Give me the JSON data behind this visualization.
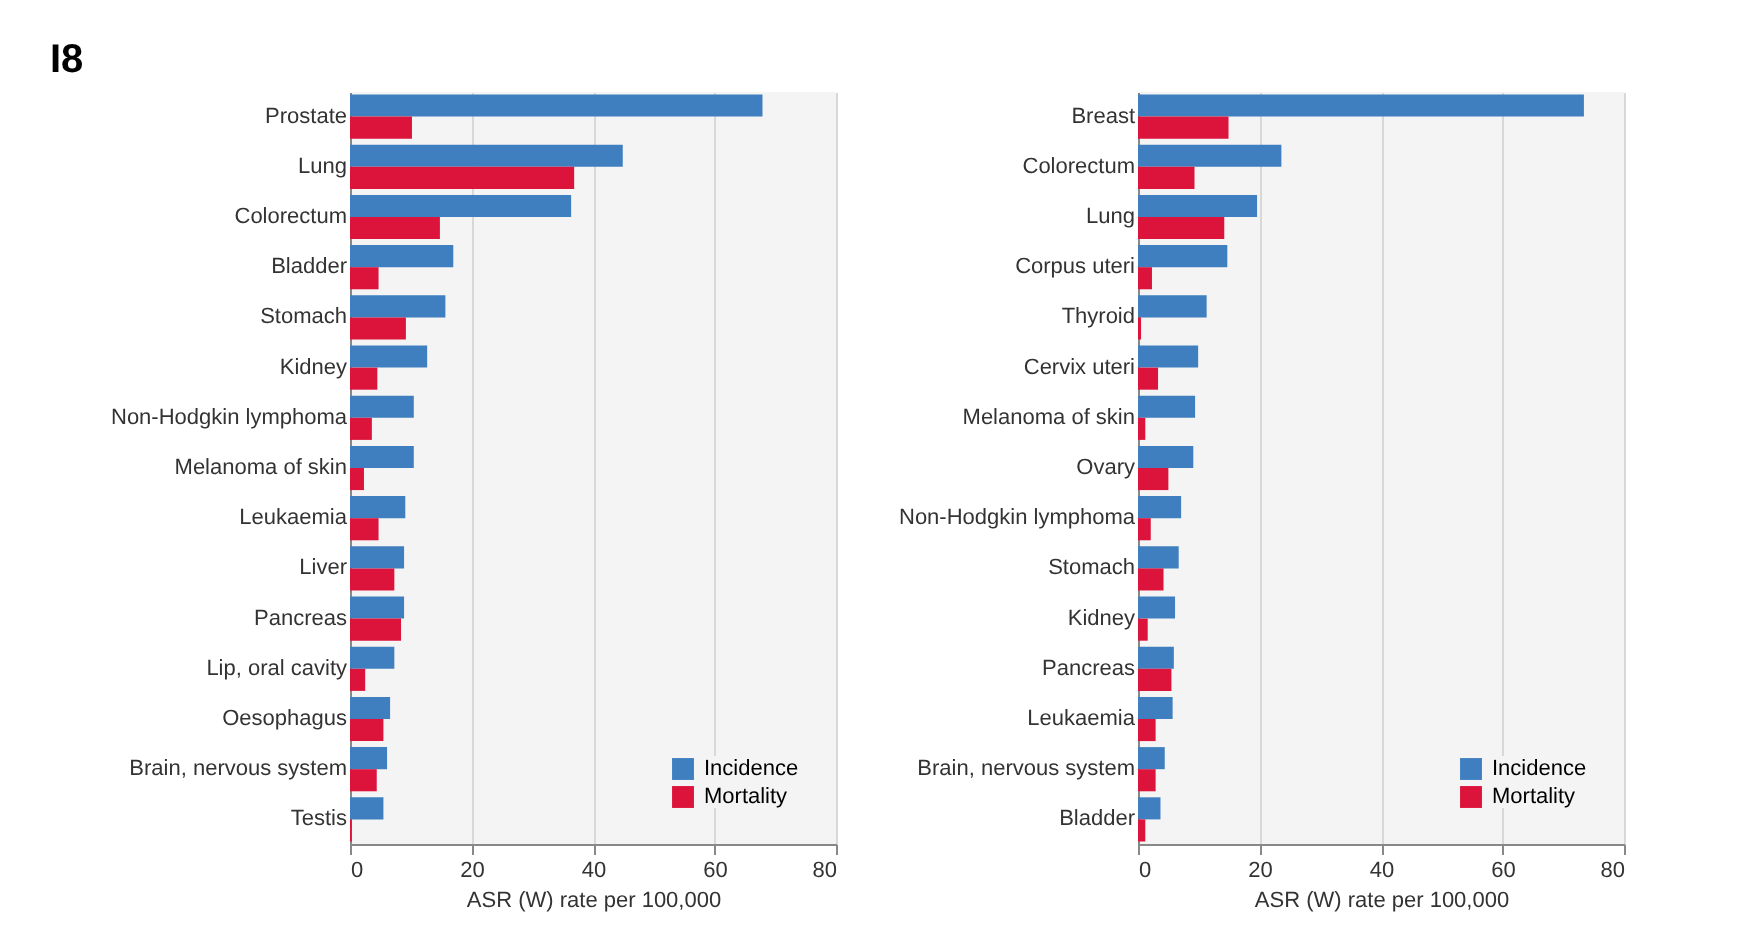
{
  "chart_data": [
    {
      "type": "bar",
      "title": "I8",
      "orientation": "horizontal",
      "xlabel": "ASR (W) rate per 100,000",
      "categories": [
        "Prostate",
        "Lung",
        "Colorectum",
        "Bladder",
        "Stomach",
        "Kidney",
        "Non-Hodgkin lymphoma",
        "Melanoma of skin",
        "Leukaemia",
        "Liver",
        "Pancreas",
        "Lip, oral cavity",
        "Oesophagus",
        "Brain, nervous system",
        "Testis"
      ],
      "series": [
        {
          "name": "Incidence",
          "color": "#3f7fbf",
          "values": [
            67.9,
            44.9,
            36.4,
            17.0,
            15.7,
            12.7,
            10.5,
            10.5,
            9.1,
            8.9,
            8.9,
            7.3,
            6.6,
            6.1,
            5.5
          ]
        },
        {
          "name": "Mortality",
          "color": "#dc143c",
          "values": [
            10.2,
            36.9,
            14.8,
            4.7,
            9.2,
            4.5,
            3.6,
            2.3,
            4.7,
            7.3,
            8.4,
            2.5,
            5.5,
            4.4,
            0.3
          ]
        }
      ],
      "xlim": [
        0,
        80
      ],
      "xticks": [
        0,
        20,
        40,
        60,
        80
      ],
      "grid": "x",
      "legend": "bottom right"
    },
    {
      "type": "bar",
      "orientation": "horizontal",
      "xlabel": "ASR (W) rate per 100,000",
      "categories": [
        "Breast",
        "Colorectum",
        "Lung",
        "Corpus uteri",
        "Thyroid",
        "Cervix uteri",
        "Melanoma of skin",
        "Ovary",
        "Non-Hodgkin lymphoma",
        "Stomach",
        "Kidney",
        "Pancreas",
        "Leukaemia",
        "Brain, nervous system",
        "Bladder"
      ],
      "series": [
        {
          "name": "Incidence",
          "color": "#3f7fbf",
          "values": [
            73.4,
            23.6,
            19.6,
            14.7,
            11.3,
            9.9,
            9.4,
            9.1,
            7.1,
            6.7,
            6.1,
            5.9,
            5.7,
            4.4,
            3.7
          ]
        },
        {
          "name": "Mortality",
          "color": "#dc143c",
          "values": [
            14.9,
            9.3,
            14.2,
            2.3,
            0.5,
            3.3,
            1.2,
            5.0,
            2.1,
            4.2,
            1.6,
            5.5,
            2.9,
            2.9,
            1.2
          ]
        }
      ],
      "xlim": [
        0,
        80
      ],
      "xticks": [
        0,
        20,
        40,
        60,
        80
      ],
      "grid": "x",
      "legend": "bottom right"
    }
  ]
}
